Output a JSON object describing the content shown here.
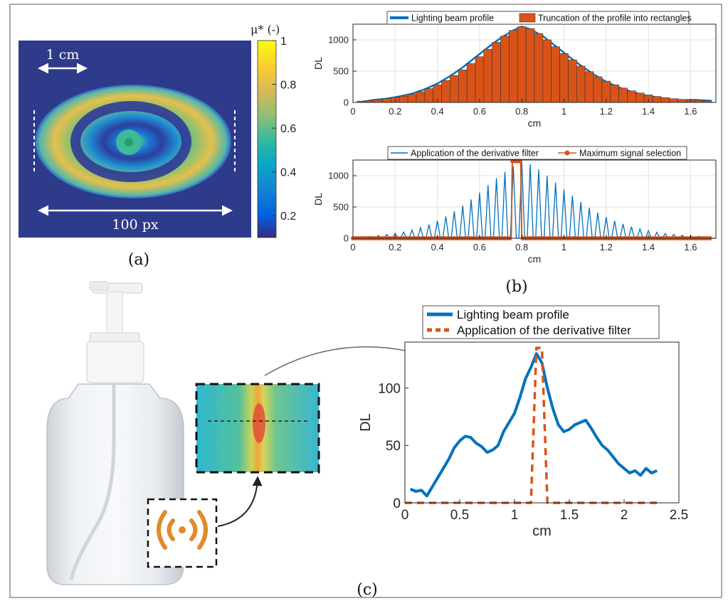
{
  "panels": {
    "a": {
      "label": "(a)",
      "scale_label": "1 cm",
      "width_label": "100 px",
      "colorbar": {
        "title": "μ* (-)",
        "ticks": [
          {
            "value": 1,
            "label": "1"
          },
          {
            "value": 0.8,
            "label": "0.8"
          },
          {
            "value": 0.6,
            "label": "0.6"
          },
          {
            "value": 0.4,
            "label": "0.4"
          },
          {
            "value": 0.2,
            "label": "0.2"
          }
        ],
        "range": [
          0.1,
          1
        ],
        "colors": [
          "#352a87",
          "#0363e1",
          "#1485d4",
          "#06a7c6",
          "#38b99e",
          "#92bf73",
          "#d9ba56",
          "#fcce2e",
          "#f9fb0e"
        ]
      },
      "background_color": "#2e3a8a"
    },
    "b": {
      "label": "(b)"
    },
    "c": {
      "label": "(c)"
    }
  },
  "chart_data": [
    {
      "id": "b_top",
      "type": "bar",
      "xlabel": "cm",
      "ylabel": "DL",
      "xlim": [
        0,
        1.72
      ],
      "ylim": [
        0,
        1250
      ],
      "xticks": [
        0,
        0.2,
        0.4,
        0.6,
        0.8,
        1,
        1.2,
        1.4,
        1.6
      ],
      "xtick_labels": [
        "0",
        "0.2",
        "0.4",
        "0.6",
        "0.8",
        "1",
        "1.2",
        "1.4",
        "1.6"
      ],
      "yticks": [
        0,
        500,
        1000
      ],
      "ytick_labels": [
        "0",
        "500",
        "1000"
      ],
      "grid": true,
      "legend_position": "top",
      "series": [
        {
          "name": "Lighting beam profile",
          "type": "line",
          "color": "#0072bd",
          "x": [
            0.04,
            0.1,
            0.16,
            0.22,
            0.28,
            0.34,
            0.4,
            0.46,
            0.52,
            0.58,
            0.64,
            0.7,
            0.76,
            0.8,
            0.84,
            0.9,
            0.96,
            1.02,
            1.08,
            1.14,
            1.2,
            1.26,
            1.32,
            1.38,
            1.44,
            1.5,
            1.56,
            1.62,
            1.7
          ],
          "y": [
            10,
            40,
            60,
            95,
            140,
            210,
            300,
            420,
            560,
            720,
            880,
            1030,
            1150,
            1210,
            1170,
            1060,
            900,
            740,
            590,
            450,
            330,
            240,
            170,
            115,
            80,
            50,
            35,
            40,
            25
          ]
        },
        {
          "name": "Truncation of the profile into rectangles",
          "type": "bar",
          "color": "#d95319",
          "x": [
            0.04,
            0.08,
            0.12,
            0.16,
            0.2,
            0.24,
            0.28,
            0.32,
            0.36,
            0.4,
            0.44,
            0.48,
            0.52,
            0.56,
            0.6,
            0.64,
            0.68,
            0.72,
            0.76,
            0.8,
            0.84,
            0.88,
            0.92,
            0.96,
            1.0,
            1.04,
            1.08,
            1.12,
            1.16,
            1.2,
            1.24,
            1.28,
            1.32,
            1.36,
            1.4,
            1.44,
            1.48,
            1.52,
            1.56,
            1.6,
            1.64,
            1.68
          ],
          "y": [
            20,
            30,
            45,
            60,
            80,
            100,
            130,
            170,
            220,
            280,
            350,
            430,
            520,
            620,
            730,
            850,
            960,
            1060,
            1150,
            1210,
            1180,
            1100,
            1000,
            890,
            780,
            680,
            580,
            490,
            410,
            340,
            280,
            230,
            185,
            150,
            120,
            95,
            75,
            60,
            48,
            40,
            32,
            25
          ]
        }
      ]
    },
    {
      "id": "b_bottom",
      "type": "line",
      "xlabel": "cm",
      "ylabel": "DL",
      "xlim": [
        0,
        1.72
      ],
      "ylim": [
        0,
        1250
      ],
      "xticks": [
        0,
        0.2,
        0.4,
        0.6,
        0.8,
        1,
        1.2,
        1.4,
        1.6
      ],
      "xtick_labels": [
        "0",
        "0.2",
        "0.4",
        "0.6",
        "0.8",
        "1",
        "1.2",
        "1.4",
        "1.6"
      ],
      "yticks": [
        0,
        500,
        1000
      ],
      "ytick_labels": [
        "0",
        "500",
        "1000"
      ],
      "grid": true,
      "legend_position": "top",
      "series": [
        {
          "name": "Application of the derivative filter",
          "type": "spikes",
          "color": "#0072bd",
          "x": [
            0.04,
            0.08,
            0.12,
            0.16,
            0.2,
            0.24,
            0.28,
            0.32,
            0.36,
            0.4,
            0.44,
            0.48,
            0.52,
            0.56,
            0.6,
            0.64,
            0.68,
            0.72,
            0.76,
            0.8,
            0.84,
            0.88,
            0.92,
            0.96,
            1.0,
            1.04,
            1.08,
            1.12,
            1.16,
            1.2,
            1.24,
            1.28,
            1.32,
            1.36,
            1.4,
            1.44,
            1.48,
            1.52,
            1.56,
            1.6,
            1.64,
            1.68
          ],
          "y": [
            20,
            30,
            45,
            60,
            80,
            100,
            130,
            170,
            220,
            280,
            350,
            430,
            520,
            620,
            730,
            850,
            960,
            1060,
            1150,
            1210,
            1180,
            1100,
            1000,
            890,
            780,
            680,
            580,
            490,
            410,
            340,
            280,
            230,
            185,
            150,
            120,
            95,
            75,
            60,
            48,
            40,
            32,
            25
          ]
        },
        {
          "name": "Maximum signal selection",
          "type": "line-markers",
          "color": "#d95319",
          "x": [
            0,
            0.1,
            0.2,
            0.3,
            0.4,
            0.5,
            0.6,
            0.7,
            0.75,
            0.755,
            0.765,
            0.775,
            0.785,
            0.795,
            0.8,
            0.85,
            0.9,
            1.0,
            1.1,
            1.2,
            1.3,
            1.4,
            1.5,
            1.6,
            1.7
          ],
          "y": [
            0,
            0,
            0,
            0,
            0,
            0,
            0,
            0,
            0,
            1230,
            1230,
            1230,
            1230,
            1230,
            0,
            0,
            0,
            0,
            0,
            0,
            0,
            0,
            0,
            0,
            0
          ]
        }
      ]
    },
    {
      "id": "c_inset",
      "type": "line",
      "xlabel": "cm",
      "ylabel": "DL",
      "xlim": [
        0,
        2.5
      ],
      "ylim": [
        0,
        140
      ],
      "xticks": [
        0,
        0.5,
        1,
        1.5,
        2,
        2.5
      ],
      "xtick_labels": [
        "0",
        "0.5",
        "1",
        "1.5",
        "2",
        "2.5"
      ],
      "yticks": [
        0,
        50,
        100
      ],
      "ytick_labels": [
        "0",
        "50",
        "100"
      ],
      "grid": false,
      "legend_position": "top",
      "series": [
        {
          "name": "Lighting beam profile",
          "type": "line",
          "color": "#0072bd",
          "x": [
            0.05,
            0.1,
            0.15,
            0.2,
            0.25,
            0.3,
            0.35,
            0.4,
            0.45,
            0.5,
            0.55,
            0.6,
            0.65,
            0.7,
            0.75,
            0.8,
            0.85,
            0.9,
            0.95,
            1.0,
            1.05,
            1.1,
            1.15,
            1.2,
            1.25,
            1.3,
            1.35,
            1.4,
            1.45,
            1.5,
            1.55,
            1.6,
            1.65,
            1.7,
            1.75,
            1.8,
            1.85,
            1.9,
            1.95,
            2.0,
            2.05,
            2.1,
            2.15,
            2.2,
            2.25,
            2.3
          ],
          "y": [
            12,
            10,
            11,
            6,
            14,
            22,
            30,
            38,
            48,
            54,
            58,
            57,
            52,
            49,
            44,
            46,
            50,
            62,
            70,
            78,
            92,
            108,
            118,
            130,
            122,
            100,
            82,
            68,
            62,
            64,
            68,
            70,
            72,
            65,
            57,
            50,
            46,
            40,
            34,
            30,
            26,
            28,
            24,
            30,
            26,
            28
          ]
        },
        {
          "name": "Application of the derivative filter",
          "type": "dashed",
          "color": "#d95319",
          "x": [
            0,
            0.5,
            1.0,
            1.1,
            1.15,
            1.2,
            1.25,
            1.3,
            1.35,
            1.5,
            2.0,
            2.3
          ],
          "y": [
            0,
            0,
            0,
            0,
            0,
            135,
            135,
            0,
            0,
            0,
            0,
            0
          ]
        }
      ]
    }
  ]
}
